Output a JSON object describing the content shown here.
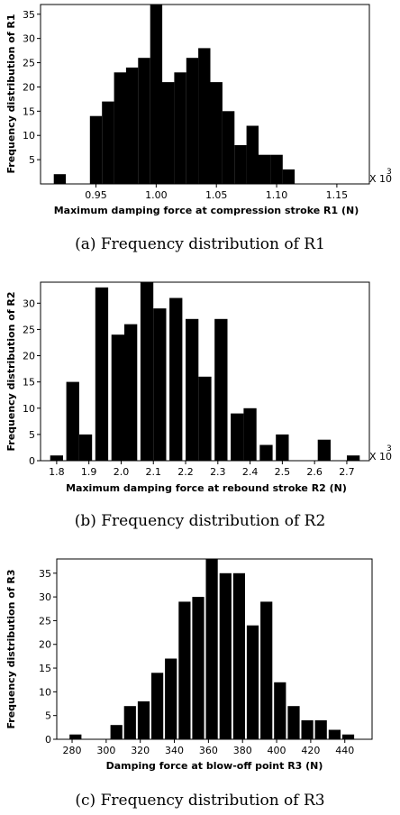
{
  "chart_data": [
    {
      "type": "bar",
      "caption": "(a) Frequency distribution of R1",
      "xlabel": "Maximum damping force at compression stroke R1 (N)",
      "ylabel": "Frequency distribution of R1",
      "multiplier_label": "X 10",
      "multiplier_exp": "3",
      "xlim": [
        0.904,
        1.177
      ],
      "ylim": [
        0,
        37
      ],
      "xticks": [
        0.95,
        1.0,
        1.05,
        1.1,
        1.15
      ],
      "xtick_labels": [
        "0.95",
        "1.00",
        "1.05",
        "1.10",
        "1.15"
      ],
      "yticks": [
        5,
        10,
        15,
        20,
        25,
        30,
        35
      ],
      "bin_width": 0.01,
      "x": [
        0.92,
        0.95,
        0.96,
        0.97,
        0.98,
        0.99,
        1.0,
        1.01,
        1.02,
        1.03,
        1.04,
        1.05,
        1.06,
        1.07,
        1.08,
        1.09,
        1.1,
        1.11
      ],
      "values": [
        2,
        14,
        17,
        23,
        24,
        26,
        37,
        21,
        23,
        26,
        28,
        21,
        15,
        8,
        12,
        6,
        6,
        3
      ]
    },
    {
      "type": "bar",
      "caption": "(b) Frequency distribution of R2",
      "xlabel": "Maximum damping force at rebound stroke R2 (N)",
      "ylabel": "Frequency distribution of R2",
      "multiplier_label": "X 10",
      "multiplier_exp": "3",
      "xlim": [
        1.75,
        2.77
      ],
      "ylim": [
        0,
        34
      ],
      "xticks": [
        1.8,
        1.9,
        2.0,
        2.1,
        2.2,
        2.3,
        2.4,
        2.5,
        2.6,
        2.7
      ],
      "xtick_labels": [
        "1.8",
        "1.9",
        "2.0",
        "2.1",
        "2.2",
        "2.3",
        "2.4",
        "2.5",
        "2.6",
        "2.7"
      ],
      "yticks": [
        0,
        5,
        10,
        15,
        20,
        25,
        30
      ],
      "bin_width": 0.04,
      "x": [
        1.8,
        1.85,
        1.89,
        1.94,
        1.99,
        2.03,
        2.08,
        2.12,
        2.17,
        2.22,
        2.26,
        2.31,
        2.36,
        2.4,
        2.45,
        2.5,
        2.54,
        2.63,
        2.72
      ],
      "values": [
        1,
        15,
        5,
        33,
        24,
        26,
        34,
        29,
        31,
        27,
        16,
        27,
        9,
        10,
        3,
        5,
        0,
        4,
        1
      ]
    },
    {
      "type": "bar",
      "caption": "(c) Frequency distribution of R3",
      "xlabel": "Damping force at blow-off point R3 (N)",
      "ylabel": "Frequency distribution of R3",
      "xlim": [
        271,
        456
      ],
      "ylim": [
        0,
        38
      ],
      "xticks": [
        280,
        300,
        320,
        340,
        360,
        380,
        400,
        420,
        440
      ],
      "xtick_labels": [
        "280",
        "300",
        "320",
        "340",
        "360",
        "380",
        "400",
        "420",
        "440"
      ],
      "yticks": [
        0,
        5,
        10,
        15,
        20,
        25,
        30,
        35
      ],
      "bin_width": 7,
      "x": [
        282,
        298,
        306,
        314,
        322,
        330,
        338,
        346,
        354,
        362,
        370,
        378,
        386,
        394,
        402,
        410,
        418,
        426,
        434,
        442,
        450
      ],
      "values": [
        1,
        0,
        3,
        7,
        8,
        14,
        17,
        29,
        30,
        38,
        35,
        35,
        24,
        29,
        12,
        7,
        4,
        4,
        2,
        1,
        0
      ]
    }
  ]
}
